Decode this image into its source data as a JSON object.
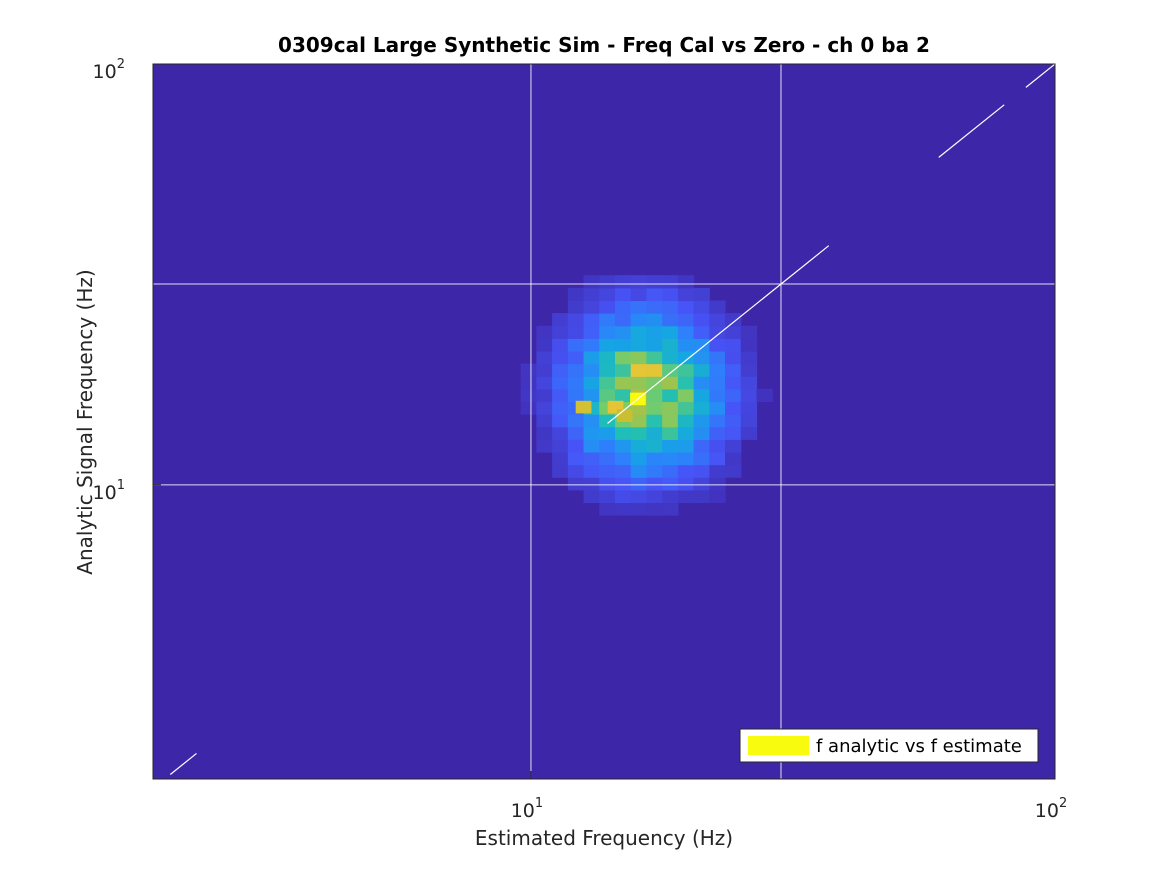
{
  "chart_data": {
    "type": "heatmap",
    "title": "0309cal Large Synthetic Sim - Freq Cal vs Zero - ch 0 ba 2",
    "xlabel": "Estimated Frequency (Hz)",
    "ylabel": "Analytic Signal Frequency (Hz)",
    "x_scale": "log",
    "y_scale": "log",
    "xlim": [
      1.9,
      100
    ],
    "ylim": [
      2.0,
      100
    ],
    "x_ticks": [
      {
        "base": "10",
        "exp": "1",
        "value": 10
      },
      {
        "base": "10",
        "exp": "2",
        "value": 100
      }
    ],
    "y_ticks": [
      {
        "base": "10",
        "exp": "1",
        "value": 10
      },
      {
        "base": "10",
        "exp": "2",
        "value": 100
      }
    ],
    "grid": true,
    "grid_x_values": [
      10,
      30
    ],
    "grid_y_values": [
      10,
      30
    ],
    "colormap": "parula",
    "background_color": "#3e26a8",
    "bin_log_step": 0.03,
    "peak": {
      "x": 16,
      "y": 16
    },
    "hot_spots": [
      {
        "x": 14.5,
        "y": 15.3,
        "z": 0.82
      },
      {
        "x": 15.1,
        "y": 14.6,
        "z": 0.76
      },
      {
        "x": 12.6,
        "y": 15.3,
        "z": 0.78
      }
    ],
    "density_note_x_range": [
      5.5,
      40
    ],
    "density_note_y_range": [
      6,
      30
    ],
    "reference_line": {
      "label": "y = x",
      "color": "#ffffff",
      "segments": [
        [
          14,
          37
        ],
        [
          60,
          80
        ],
        [
          88,
          100
        ]
      ]
    },
    "legend": {
      "entries": [
        {
          "label": "f analytic vs f estimate",
          "color": "#f9fb0e"
        }
      ],
      "location": "bottom-right"
    }
  }
}
